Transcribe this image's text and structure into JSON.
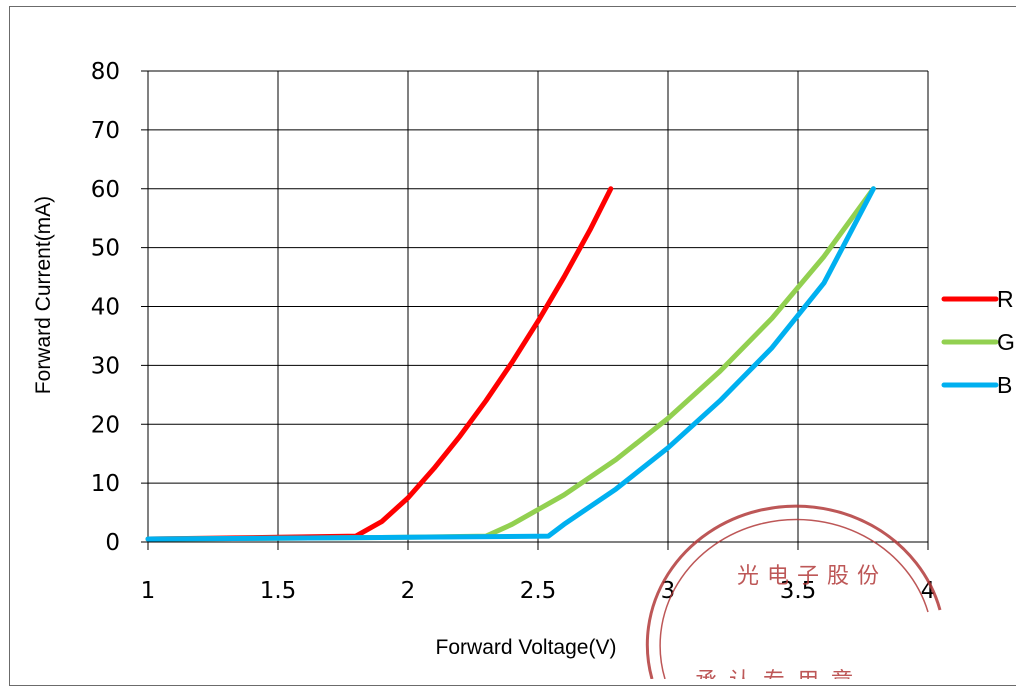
{
  "chart_data": {
    "type": "line",
    "title": "",
    "xlabel": "Forward Voltage(V)",
    "ylabel": "Forward Current(mA)",
    "xlim": [
      1,
      4
    ],
    "ylim": [
      0,
      80
    ],
    "xticks": [
      1,
      1.5,
      2,
      2.5,
      3,
      3.5,
      4
    ],
    "xtick_labels": [
      "1",
      "1.5",
      "2",
      "2.5",
      "3",
      "3.5",
      "4"
    ],
    "yticks": [
      0,
      10,
      20,
      30,
      40,
      50,
      60,
      70,
      80
    ],
    "ytick_labels": [
      "0",
      "10",
      "20",
      "30",
      "40",
      "50",
      "60",
      "70",
      "80"
    ],
    "grid": true,
    "legend_position": "right",
    "series": [
      {
        "name": "R",
        "color": "#ff0000",
        "x": [
          1.0,
          1.5,
          1.8,
          1.9,
          2.0,
          2.1,
          2.2,
          2.3,
          2.4,
          2.5,
          2.6,
          2.7,
          2.78
        ],
        "y": [
          0.5,
          0.8,
          1.0,
          3.5,
          7.5,
          12.5,
          18.0,
          24.0,
          30.5,
          37.5,
          45.0,
          53.0,
          60.0
        ]
      },
      {
        "name": "G",
        "color": "#92d050",
        "x": [
          1.0,
          2.0,
          2.3,
          2.4,
          2.5,
          2.6,
          2.8,
          3.0,
          3.2,
          3.4,
          3.6,
          3.79
        ],
        "y": [
          0.5,
          0.8,
          1.0,
          3.0,
          5.5,
          8.0,
          14.0,
          21.0,
          29.0,
          38.0,
          48.5,
          60.0
        ]
      },
      {
        "name": "B",
        "color": "#00b0f0",
        "x": [
          1.0,
          2.0,
          2.54,
          2.6,
          2.8,
          3.0,
          3.2,
          3.4,
          3.6,
          3.79
        ],
        "y": [
          0.5,
          0.8,
          1.0,
          3.0,
          9.0,
          16.0,
          24.0,
          33.0,
          44.0,
          60.0
        ]
      }
    ]
  },
  "stamp": {
    "top_text": "光电子股份",
    "bottom_text": "承认专用章",
    "color": "#b23a3a"
  }
}
